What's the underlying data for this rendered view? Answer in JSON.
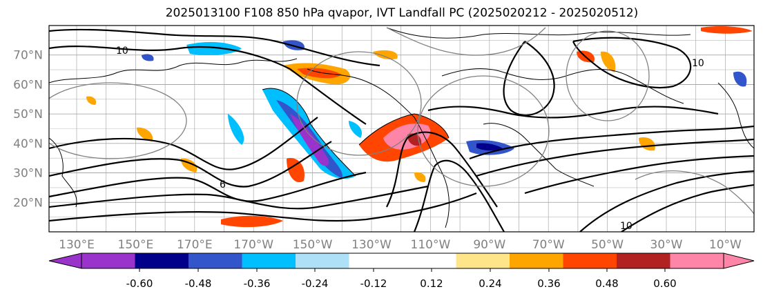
{
  "title": "2025013100 F108 850 hPa qvapor, IVT Landfall PC (2025020212 - 2025020512)",
  "map": {
    "projection": "cylindrical",
    "lat_labels": [
      "70°N",
      "60°N",
      "50°N",
      "40°N",
      "30°N",
      "20°N"
    ],
    "lon_labels": [
      "130°E",
      "150°E",
      "170°E",
      "170°W",
      "150°W",
      "130°W",
      "110°W",
      "90°W",
      "70°W",
      "50°W",
      "30°W",
      "10°W"
    ],
    "grid": true,
    "contour_labels": [
      "6",
      "10",
      "10",
      "10"
    ]
  },
  "colorbar": {
    "orientation": "horizontal",
    "extend": "both",
    "tick_labels": [
      "-0.60",
      "-0.48",
      "-0.36",
      "-0.24",
      "-0.12",
      "0.12",
      "0.24",
      "0.36",
      "0.48",
      "0.60"
    ],
    "colors": [
      "#9933cc",
      "#00008b",
      "#3355cc",
      "#00bfff",
      "#aee0f7",
      "#ffffff",
      "#ffe58a",
      "#ffa500",
      "#ff4500",
      "#b22222",
      "#ff85a8"
    ]
  },
  "chart_data": {
    "type": "heatmap",
    "title": "2025013100 F108 850 hPa qvapor, IVT Landfall PC (2025020212 - 2025020512)",
    "variable": "850 hPa qvapor",
    "levels": [
      -0.6,
      -0.48,
      -0.36,
      -0.24,
      -0.12,
      0.12,
      0.24,
      0.36,
      0.48,
      0.6
    ],
    "ylim": [
      10,
      80
    ],
    "xlim_labels": [
      "130°E",
      "10°W"
    ]
  }
}
